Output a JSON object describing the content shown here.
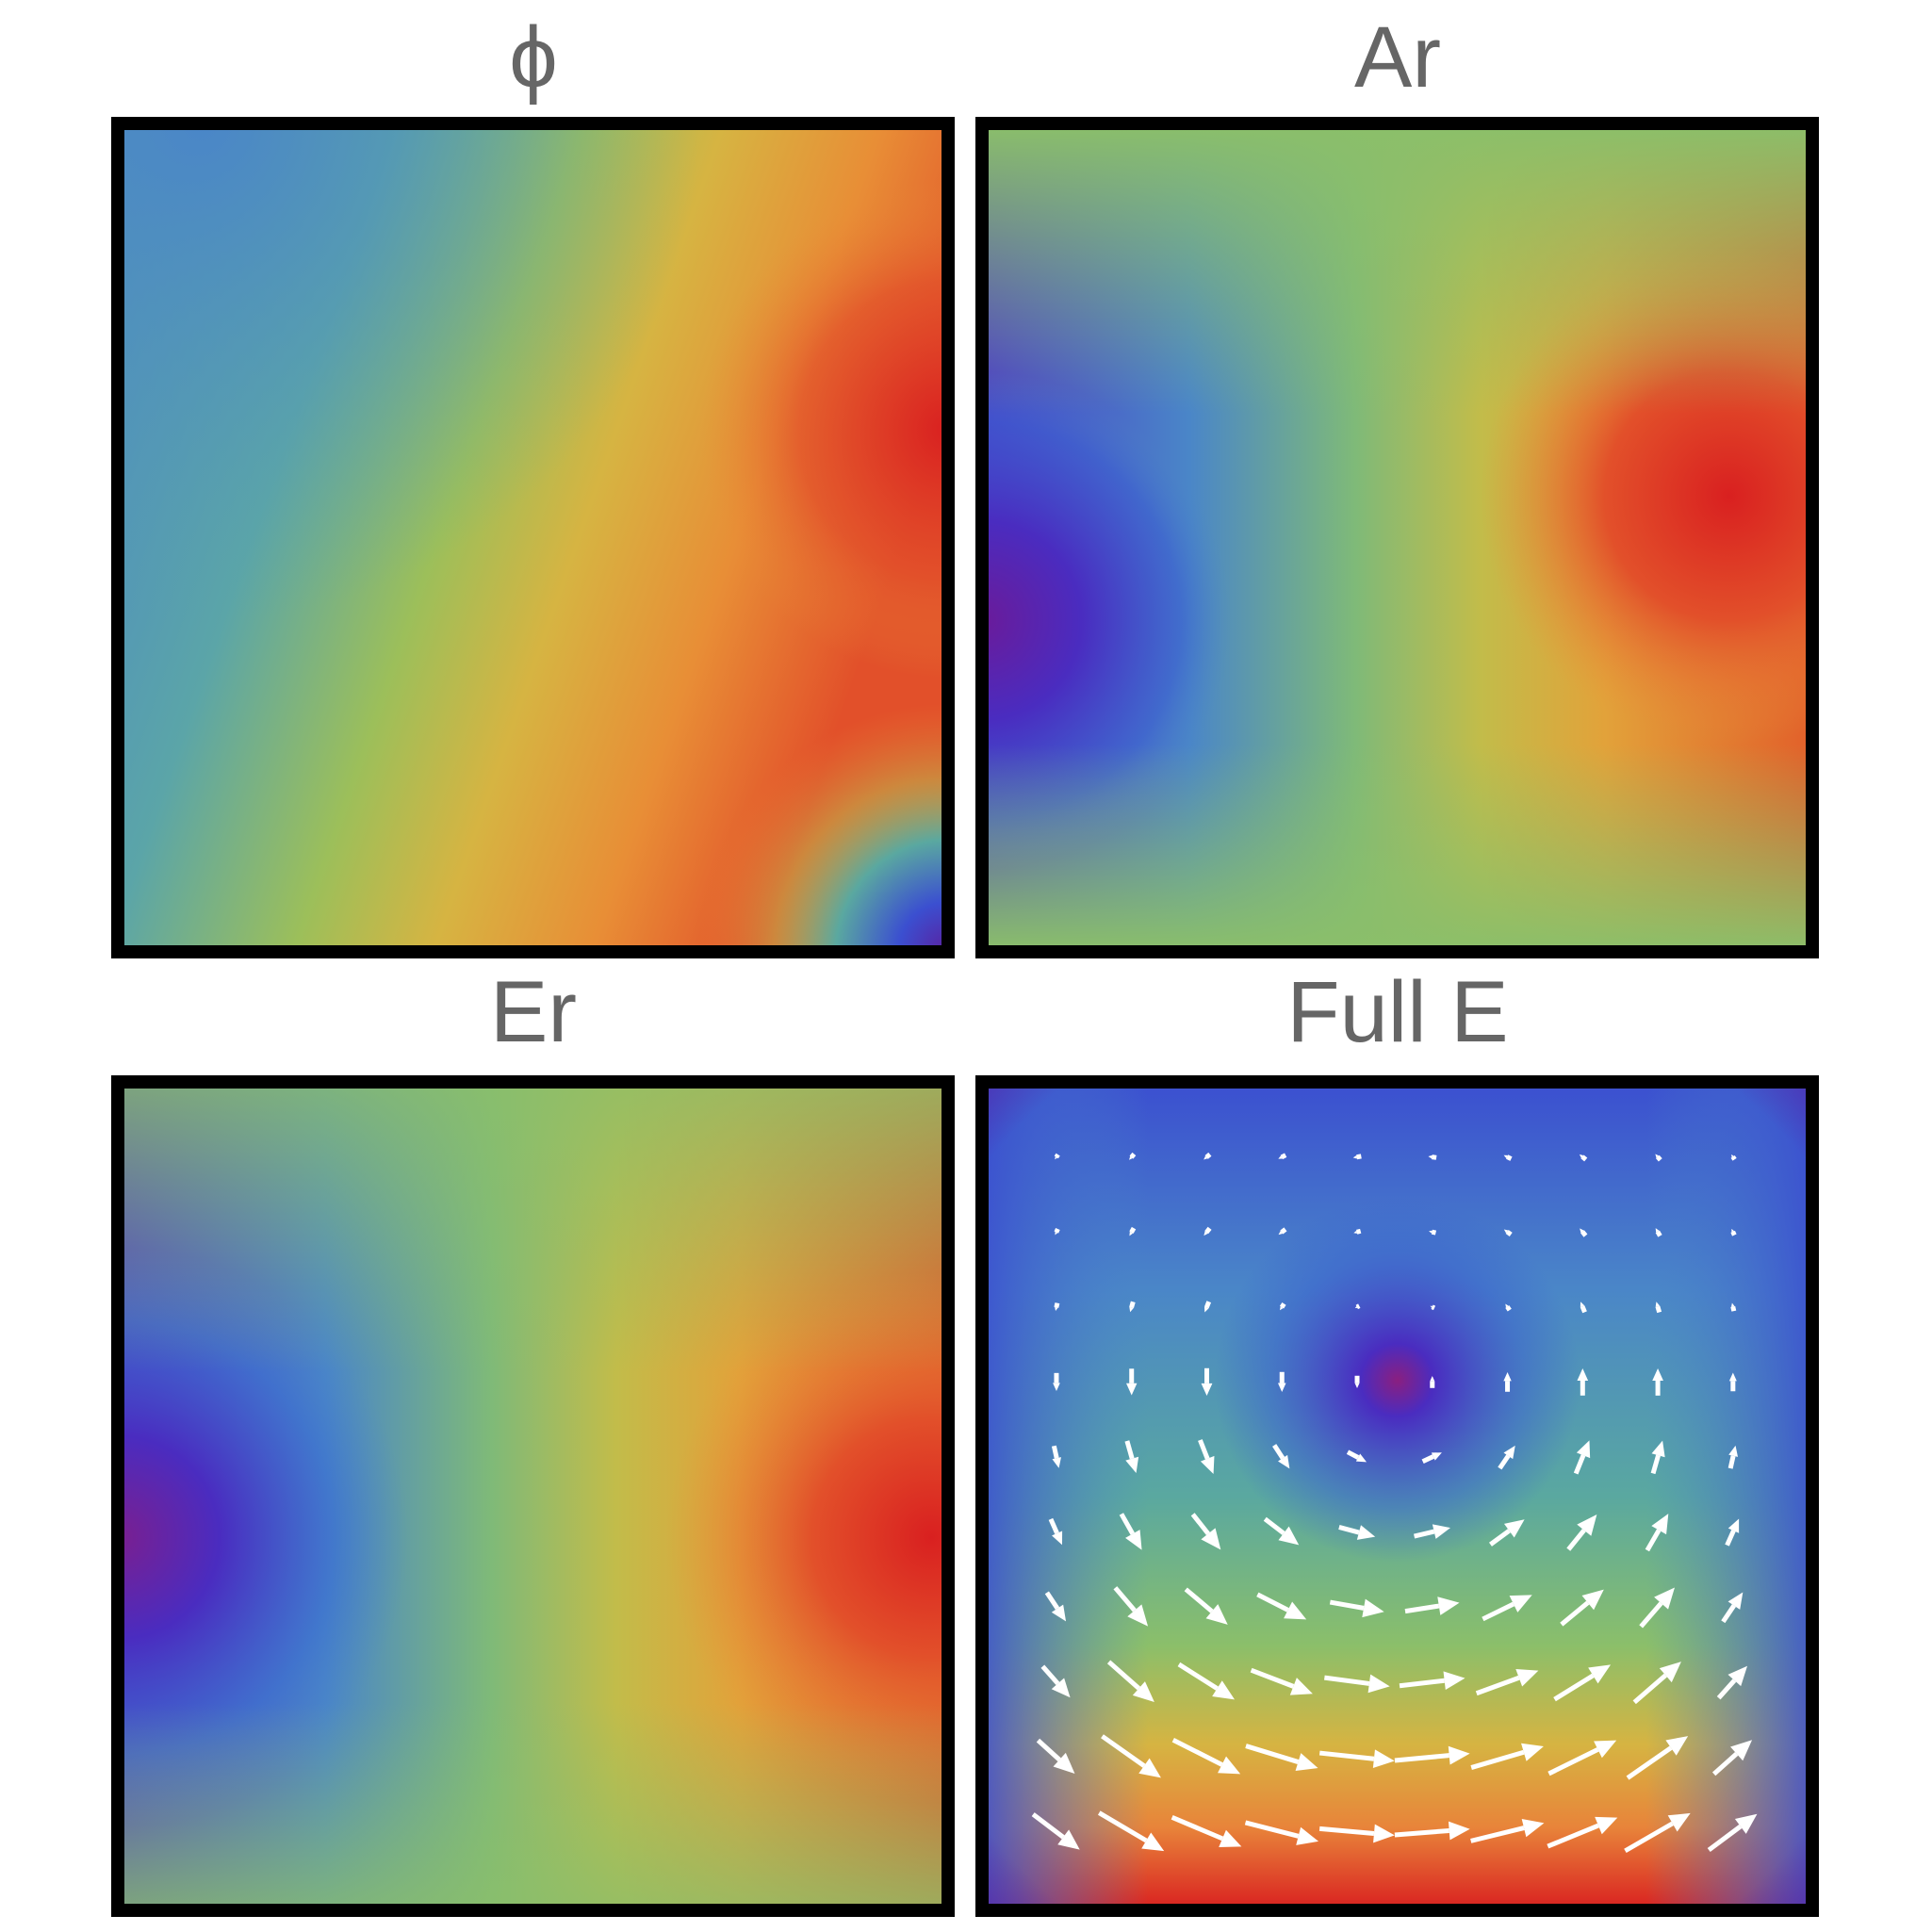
{
  "panels": [
    {
      "title": "ϕ"
    },
    {
      "title": "Ar"
    },
    {
      "title": "Er"
    },
    {
      "title": "Full E"
    }
  ]
}
